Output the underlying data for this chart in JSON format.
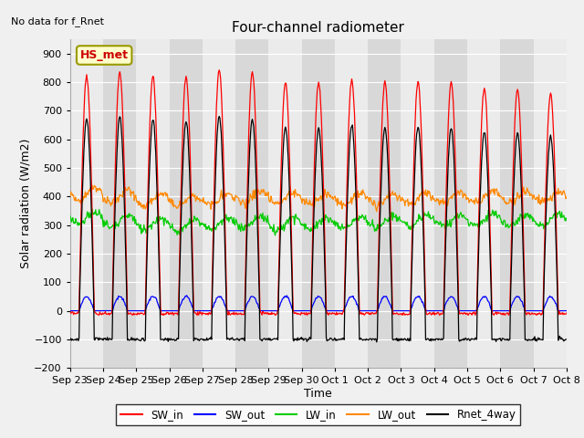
{
  "title": "Four-channel radiometer",
  "xlabel": "Time",
  "ylabel": "Solar radiation (W/m2)",
  "top_left_text": "No data for f_Rnet",
  "station_label": "HS_met",
  "ylim": [
    -200,
    950
  ],
  "yticks": [
    -200,
    -100,
    0,
    100,
    200,
    300,
    400,
    500,
    600,
    700,
    800,
    900
  ],
  "date_labels": [
    "Sep 23",
    "Sep 24",
    "Sep 25",
    "Sep 26",
    "Sep 27",
    "Sep 28",
    "Sep 29",
    "Sep 30",
    "Oct 1",
    "Oct 2",
    "Oct 3",
    "Oct 4",
    "Oct 5",
    "Oct 6",
    "Oct 7",
    "Oct 8"
  ],
  "n_days": 15,
  "colors": {
    "SW_in": "#ff0000",
    "SW_out": "#0000ff",
    "LW_in": "#00cc00",
    "LW_out": "#ff8800",
    "Rnet_4way": "#000000"
  },
  "legend_items": [
    "SW_in",
    "SW_out",
    "LW_in",
    "LW_out",
    "Rnet_4way"
  ],
  "bg_color_light": "#ebebeb",
  "bg_color_dark": "#d8d8d8",
  "fig_bg": "#f0f0f0",
  "sw_in_peaks": [
    820,
    835,
    820,
    820,
    845,
    835,
    800,
    800,
    810,
    800,
    800,
    800,
    780,
    775,
    760
  ],
  "rnet_peaks": [
    670,
    680,
    670,
    665,
    680,
    670,
    640,
    640,
    650,
    640,
    645,
    640,
    625,
    620,
    610
  ],
  "lw_in_base": [
    325,
    315,
    305,
    300,
    305,
    310,
    305,
    305,
    310,
    310,
    315,
    315,
    320,
    318,
    320
  ],
  "lw_out_base": [
    410,
    400,
    390,
    385,
    390,
    400,
    395,
    390,
    390,
    390,
    395,
    395,
    400,
    398,
    400
  ]
}
